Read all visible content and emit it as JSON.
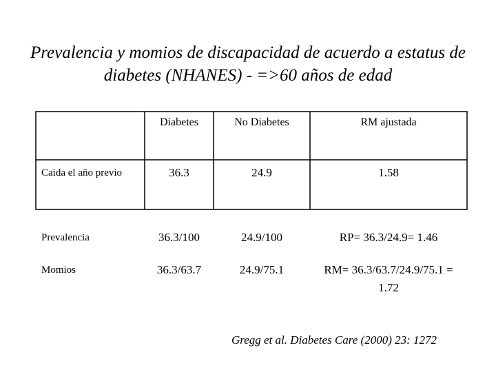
{
  "title": "Prevalencia y momios de discapacidad de acuerdo a estatus de diabetes (NHANES) - =>60 años de edad",
  "table": {
    "columns": [
      "Diabetes",
      "No Diabetes",
      "RM ajustada"
    ],
    "rows": [
      {
        "label": "Caida el año previo",
        "cells": [
          "36.3",
          "24.9",
          "1.58"
        ]
      },
      {
        "label": "Prevalencia",
        "cells": [
          "36.3/100",
          "24.9/100",
          "RP= 36.3/24.9= 1.46"
        ]
      },
      {
        "label": "Momios",
        "cells": [
          "36.3/63.7",
          "24.9/75.1",
          "RM= 36.3/63.7/24.9/75.1 = 1.72"
        ]
      }
    ]
  },
  "citation": "Gregg et al. Diabetes Care (2000) 23: 1272"
}
